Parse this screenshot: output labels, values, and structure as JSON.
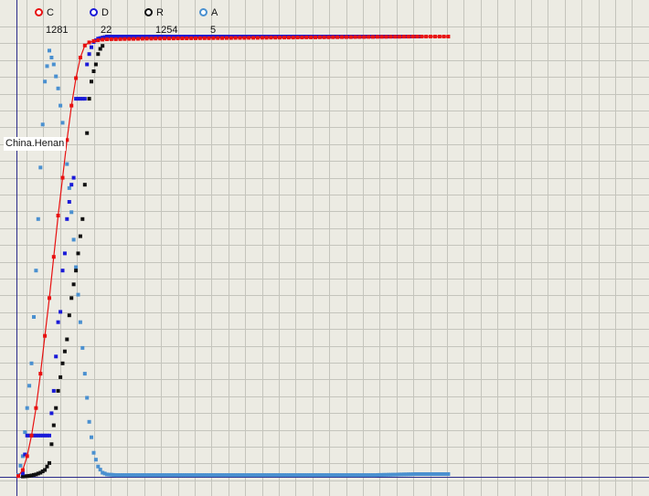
{
  "chart_data": {
    "type": "scatter",
    "annotation": "China.Henan",
    "grid": true,
    "legend_placement": "top-left",
    "x_range": [
      0,
      100
    ],
    "y_range": [
      0,
      1281
    ],
    "series": [
      {
        "name": "C",
        "count": "1281",
        "color": "#e81010",
        "line": true,
        "marker_step": 2,
        "x": [
          0,
          1,
          2,
          3,
          4,
          5,
          6,
          7,
          8,
          9,
          10,
          11,
          12,
          13,
          14,
          15,
          16,
          17,
          18,
          19,
          20,
          25,
          30,
          40,
          50,
          60,
          70,
          80,
          90,
          97
        ],
        "y": [
          2,
          20,
          60,
          120,
          200,
          300,
          410,
          520,
          640,
          760,
          870,
          980,
          1080,
          1160,
          1220,
          1255,
          1264,
          1268,
          1270,
          1272,
          1273,
          1274,
          1275,
          1276,
          1277,
          1278,
          1279,
          1280,
          1281,
          1281
        ]
      },
      {
        "name": "D",
        "count": "22",
        "color": "#1a1ad8",
        "line": false,
        "marker_step": 1,
        "x": [
          1,
          2,
          3,
          4,
          5,
          6,
          7,
          8,
          9,
          9.5,
          10,
          10.5,
          11,
          11.5,
          12,
          12.5,
          13,
          13.5,
          14,
          14.5,
          15,
          15.5,
          16,
          16.5,
          17,
          17.5,
          18,
          20,
          40,
          60,
          80,
          91
        ],
        "y": [
          10,
          120,
          120,
          120,
          120,
          120,
          120,
          250,
          450,
          480,
          600,
          650,
          750,
          800,
          850,
          870,
          1100,
          1100,
          1100,
          1100,
          1100,
          1200,
          1230,
          1250,
          1265,
          1270,
          1275,
          1281,
          1281,
          1281,
          1281,
          1281
        ]
      },
      {
        "name": "R",
        "count": "1254",
        "color": "#101010",
        "line": false,
        "marker_step": 1,
        "x": [
          1,
          2,
          3,
          4,
          5,
          6,
          7,
          8,
          9,
          10,
          11,
          11.5,
          12,
          12.5,
          13,
          13.5,
          14,
          14.5,
          15,
          15.5,
          16,
          16.5,
          17,
          17.5,
          18,
          18.5,
          19
        ],
        "y": [
          1,
          2,
          4,
          7,
          12,
          20,
          40,
          150,
          250,
          330,
          400,
          470,
          520,
          560,
          600,
          650,
          700,
          750,
          850,
          1000,
          1100,
          1150,
          1180,
          1200,
          1230,
          1245,
          1254
        ]
      },
      {
        "name": "A",
        "count": "5",
        "color": "#4a90d0",
        "line": false,
        "marker_step": 1,
        "x": [
          0,
          1,
          2,
          3,
          4,
          5,
          6,
          7,
          8,
          9,
          10,
          11,
          12,
          13,
          14,
          15,
          16,
          17,
          18,
          19,
          20,
          22,
          25,
          30,
          40,
          50,
          60,
          70,
          80,
          90,
          97
        ],
        "y": [
          5,
          60,
          200,
          330,
          600,
          900,
          1150,
          1240,
          1200,
          1130,
          1030,
          910,
          770,
          610,
          450,
          300,
          160,
          70,
          30,
          12,
          7,
          5,
          5,
          5,
          5,
          5,
          5,
          5,
          5,
          8,
          8
        ]
      }
    ]
  }
}
